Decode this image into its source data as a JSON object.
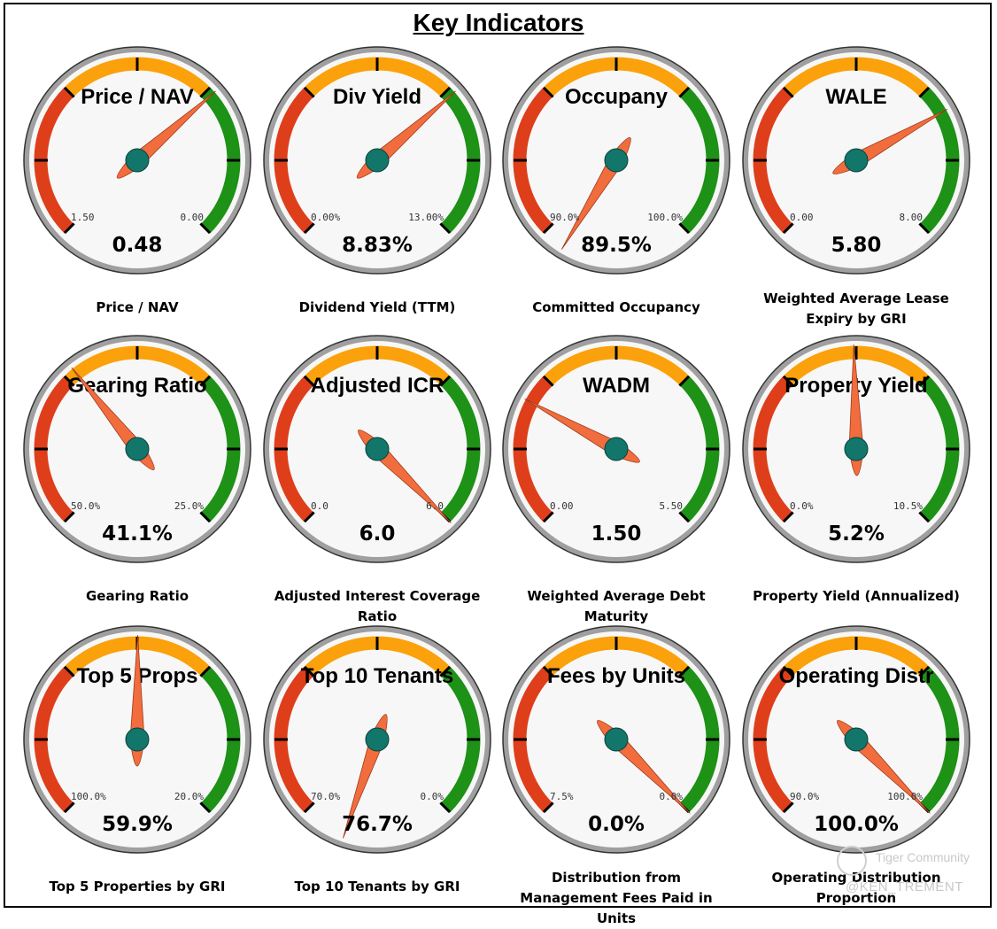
{
  "page": {
    "title": "Key Indicators"
  },
  "colors": {
    "red": "#de3e1a",
    "orange": "#fba10b",
    "green": "#1e9117",
    "needle": "#f26d3d",
    "hub": "#12766b",
    "face": "#f7f7f7",
    "rim": "#9f9f9f"
  },
  "gauges": [
    {
      "title": "Price / NAV",
      "min": "1.50",
      "max": "0.00",
      "value": "0.48",
      "label": "Price / NAV",
      "needle_fraction": 0.68,
      "reversed": true
    },
    {
      "title": "Div Yield",
      "min": "0.00%",
      "max": "13.00%",
      "value": "8.83%",
      "label": "Dividend Yield (TTM)",
      "needle_fraction": 0.68
    },
    {
      "title": "Occupany",
      "min": "90.0%",
      "max": "100.0%",
      "value": "89.5%",
      "label": "Committed Occupancy",
      "needle_fraction": -0.05
    },
    {
      "title": "WALE",
      "min": "0.00",
      "max": "8.00",
      "value": "5.80",
      "label": "Weighted Average Lease Expiry by GRI",
      "needle_fraction": 0.725
    },
    {
      "title": "Gearing Ratio",
      "min": "50.0%",
      "max": "25.0%",
      "value": "41.1%",
      "label": "Gearing Ratio",
      "needle_fraction": 0.356,
      "reversed": true
    },
    {
      "title": "Adjusted ICR",
      "min": "0.0",
      "max": "6.0",
      "value": "6.0",
      "label": "Adjusted Interest Coverage Ratio",
      "needle_fraction": 1.0
    },
    {
      "title": "WADM",
      "min": "0.00",
      "max": "5.50",
      "value": "1.50",
      "label": "Weighted Average Debt Maturity",
      "needle_fraction": 0.273
    },
    {
      "title": "Property Yield",
      "min": "0.0%",
      "max": "10.5%",
      "value": "5.2%",
      "label": "Property Yield (Annualized)",
      "needle_fraction": 0.495
    },
    {
      "title": "Top 5 Props",
      "min": "100.0%",
      "max": "20.0%",
      "value": "59.9%",
      "label": "Top 5 Properties by GRI",
      "needle_fraction": 0.501,
      "reversed": true
    },
    {
      "title": "Top 10 Tenants",
      "min": "70.0%",
      "max": "0.0%",
      "value": "76.7%",
      "label": "Top 10 Tenants by GRI",
      "needle_fraction": -0.096,
      "reversed": true
    },
    {
      "title": "Fees by Units",
      "min": "7.5%",
      "max": "0.0%",
      "value": "0.0%",
      "label": "Distribution from Management Fees Paid in Units",
      "needle_fraction": 1.0,
      "reversed": true
    },
    {
      "title": "Operating Distr",
      "min": "90.0%",
      "max": "100.0%",
      "value": "100.0%",
      "label": "Operating Distribution Proportion",
      "needle_fraction": 1.0
    }
  ],
  "watermark": {
    "brand": "Tiger Community",
    "user": "@KEN_TREMENT"
  }
}
